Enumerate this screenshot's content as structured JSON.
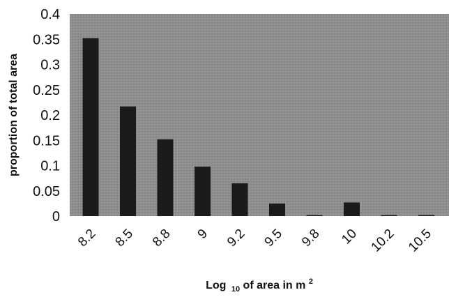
{
  "chart_data": {
    "type": "bar",
    "categories": [
      "8.2",
      "8.5",
      "8.8",
      "9",
      "9.2",
      "9.5",
      "9.8",
      "10",
      "10.2",
      "10.5"
    ],
    "values": [
      0.352,
      0.217,
      0.152,
      0.098,
      0.065,
      0.025,
      0.002,
      0.027,
      0.002,
      0.002
    ],
    "ylabel": "proportion of total area",
    "xlabel": {
      "main": "Log",
      "subscript": "10",
      "rest": " of area in m",
      "superscript": "2"
    },
    "ylim": [
      0,
      0.4
    ],
    "yticks": [
      "0",
      "0.05",
      "0.1",
      "0.15",
      "0.2",
      "0.25",
      "0.3",
      "0.35",
      "0.4"
    ],
    "grid": false,
    "legend": "none",
    "colors": {
      "plot_background": "#8e8e8e",
      "bar_fill": "#1a1a1a"
    }
  }
}
